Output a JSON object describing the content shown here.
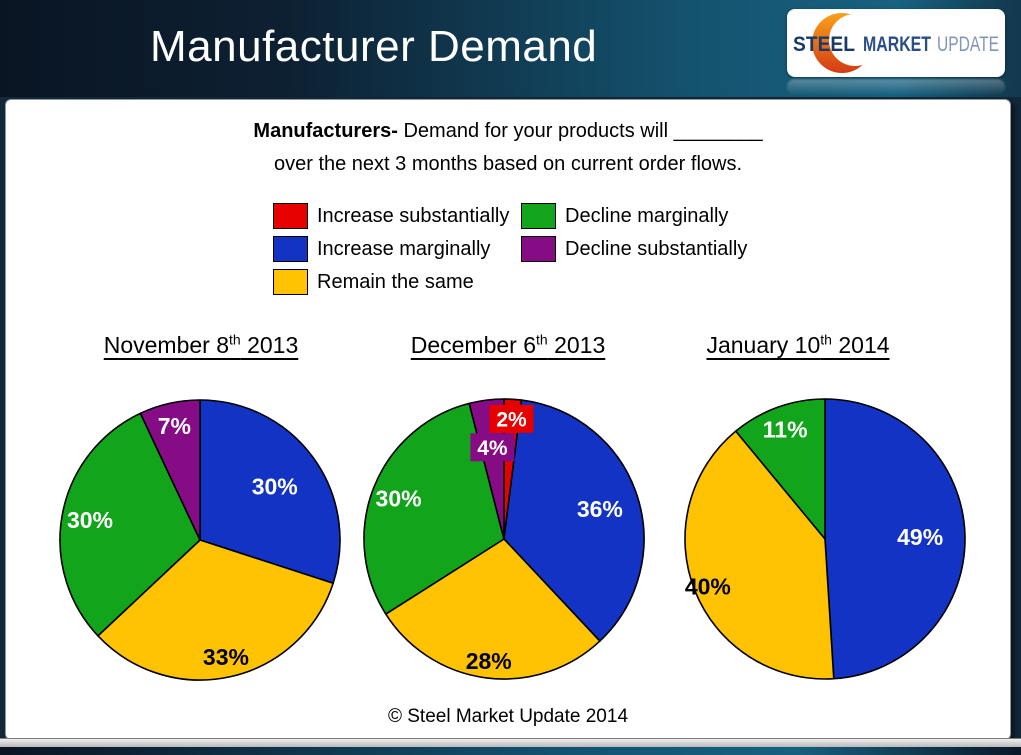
{
  "header": {
    "title": "Manufacturer Demand",
    "logo": {
      "steel": "STEEL",
      "market": "MARKET",
      "update": "UPDATE"
    }
  },
  "question": {
    "bold": "Manufacturers-",
    "line1_rest": "Demand for your products will ________",
    "line2": "over the next 3 months based on current order flows."
  },
  "legend": {
    "position": "top",
    "items": [
      {
        "label": "Increase substantially",
        "color": "#e60000"
      },
      {
        "label": "Increase marginally",
        "color": "#1233c4"
      },
      {
        "label": "Remain the same",
        "color": "#ffc303"
      },
      {
        "label": "Decline marginally",
        "color": "#12a41b"
      },
      {
        "label": "Decline substantially",
        "color": "#850c85"
      }
    ]
  },
  "chart_data": {
    "type": "pie",
    "unit": "%",
    "start_angle_deg": 0,
    "direction": "clockwise",
    "categories": [
      "Increase substantially",
      "Increase marginally",
      "Remain the same",
      "Decline marginally",
      "Decline substantially"
    ],
    "colors": [
      "#e60000",
      "#1233c4",
      "#ffc303",
      "#12a41b",
      "#850c85"
    ],
    "charts": [
      {
        "title_text": "November 8",
        "title_sup": "th",
        "title_year": " 2013",
        "slices": [
          {
            "category": "Increase substantially",
            "value": 0
          },
          {
            "category": "Increase marginally",
            "value": 30,
            "label": "30%",
            "label_color": "#ffffff",
            "label_r": 0.66
          },
          {
            "category": "Remain the same",
            "value": 33,
            "label": "33%",
            "label_color": "#000000",
            "label_r": 0.85
          },
          {
            "category": "Decline marginally",
            "value": 30,
            "label": "30%",
            "label_color": "#ffffff",
            "label_r": 0.8
          },
          {
            "category": "Decline substantially",
            "value": 7,
            "label": "7%",
            "label_color": "#ffffff",
            "label_r": 0.84
          }
        ]
      },
      {
        "title_text": "December 6",
        "title_sup": "th",
        "title_year": " 2013",
        "slices": [
          {
            "category": "Increase substantially",
            "value": 2,
            "label": "2%",
            "label_color": "#ffffff",
            "label_r": 0.86,
            "boxed": true
          },
          {
            "category": "Increase marginally",
            "value": 36,
            "label": "36%",
            "label_color": "#ffffff",
            "label_r": 0.72
          },
          {
            "category": "Remain the same",
            "value": 28,
            "label": "28%",
            "label_color": "#000000",
            "label_r": 0.87
          },
          {
            "category": "Decline marginally",
            "value": 30,
            "label": "30%",
            "label_color": "#ffffff",
            "label_r": 0.81
          },
          {
            "category": "Decline substantially",
            "value": 4,
            "label": "4%",
            "label_color": "#ffffff",
            "label_r": 0.66,
            "boxed": true
          }
        ]
      },
      {
        "title_text": "January 10",
        "title_sup": "th",
        "title_year": " 2014",
        "slices": [
          {
            "category": "Increase substantially",
            "value": 0
          },
          {
            "category": "Increase marginally",
            "value": 49,
            "label": "49%",
            "label_color": "#ffffff",
            "label_r": 0.68
          },
          {
            "category": "Remain the same",
            "value": 40,
            "label": "40%",
            "label_color": "#000000",
            "label_r": 0.9
          },
          {
            "category": "Decline marginally",
            "value": 11,
            "label": "11%",
            "label_color": "#ffffff",
            "label_r": 0.84
          },
          {
            "category": "Decline substantially",
            "value": 0
          }
        ]
      }
    ]
  },
  "footer": {
    "copyright": "© Steel Market Update 2014"
  },
  "brand_colors": {
    "crescent_top": "#f9a11b",
    "crescent_bottom": "#d43c15",
    "header_teal": "#14536f",
    "header_navy": "#0a1523"
  }
}
